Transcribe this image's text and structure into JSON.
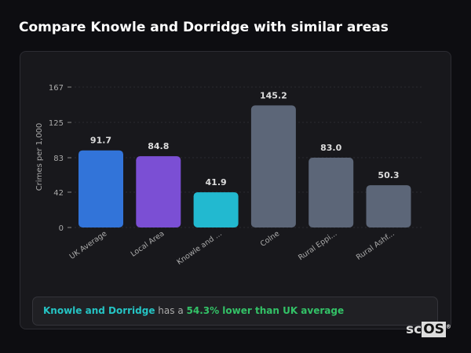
{
  "title": "Compare Knowle and Dorridge with similar areas",
  "chart_data": {
    "type": "bar",
    "ylabel": "Crimes per 1,000",
    "yticks": [
      0,
      42,
      83,
      125,
      167
    ],
    "ylim": [
      0,
      167
    ],
    "grid": true,
    "categories": [
      "UK Average",
      "Local Area",
      "Knowle and ...",
      "Colne",
      "Rural Eppi...",
      "Rural Ashf..."
    ],
    "values": [
      91.7,
      84.8,
      41.9,
      145.2,
      83.0,
      50.3
    ],
    "value_labels": [
      "91.7",
      "84.8",
      "41.9",
      "145.2",
      "83.0",
      "50.3"
    ],
    "colors": [
      "#3274d9",
      "#7b4fd4",
      "#22b9d0",
      "#5c6678",
      "#5c6678",
      "#5c6678"
    ]
  },
  "summary": {
    "area": "Knowle and Dorridge",
    "middle": " has a ",
    "result": "54.3% lower than UK average"
  },
  "logo": {
    "sc": "sc",
    "os": "OS",
    "mark": "®"
  }
}
